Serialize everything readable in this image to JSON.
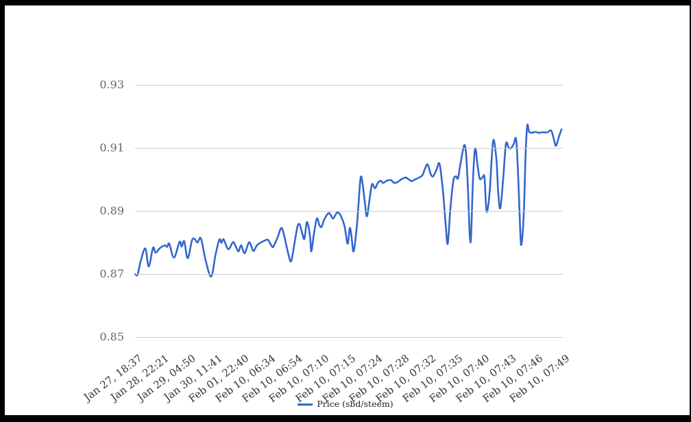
{
  "frame": {
    "color": "#000000"
  },
  "chart_data": {
    "type": "line",
    "title": "",
    "xlabel": "",
    "ylabel": "",
    "ylim": [
      0.85,
      0.93
    ],
    "yticks": [
      0.93,
      0.91,
      0.89,
      0.87,
      0.85
    ],
    "grid": true,
    "legend_position": "bottom",
    "categories": [
      "Jan 27, 18:37",
      "Jan 28, 22:21",
      "Jan 29, 04:50",
      "Jan 30, 11:41",
      "Feb 01, 22:40",
      "Feb 10, 06:34",
      "Feb 10, 06:54",
      "Feb 10, 07:10",
      "Feb 10, 07:15",
      "Feb 10, 07:24",
      "Feb 10, 07:28",
      "Feb 10, 07:32",
      "Feb 10, 07:35",
      "Feb 10, 07:40",
      "Feb 10, 07:43",
      "Feb 10, 07:46",
      "Feb 10, 07:49"
    ],
    "series": [
      {
        "name": "Price (sbd/steem)",
        "color": "#3366cc",
        "points": [
          [
            0.0,
            0.87
          ],
          [
            0.006,
            0.8698
          ],
          [
            0.013,
            0.874
          ],
          [
            0.024,
            0.8781
          ],
          [
            0.032,
            0.8724
          ],
          [
            0.042,
            0.8783
          ],
          [
            0.048,
            0.8768
          ],
          [
            0.058,
            0.8782
          ],
          [
            0.069,
            0.8791
          ],
          [
            0.075,
            0.8786
          ],
          [
            0.08,
            0.8796
          ],
          [
            0.091,
            0.8752
          ],
          [
            0.104,
            0.8802
          ],
          [
            0.109,
            0.8787
          ],
          [
            0.115,
            0.8804
          ],
          [
            0.123,
            0.875
          ],
          [
            0.133,
            0.8806
          ],
          [
            0.139,
            0.8812
          ],
          [
            0.146,
            0.88
          ],
          [
            0.154,
            0.8813
          ],
          [
            0.165,
            0.8743
          ],
          [
            0.178,
            0.8692
          ],
          [
            0.188,
            0.876
          ],
          [
            0.197,
            0.8809
          ],
          [
            0.202,
            0.8799
          ],
          [
            0.207,
            0.881
          ],
          [
            0.218,
            0.8779
          ],
          [
            0.229,
            0.8801
          ],
          [
            0.236,
            0.8786
          ],
          [
            0.242,
            0.8772
          ],
          [
            0.248,
            0.8791
          ],
          [
            0.256,
            0.8766
          ],
          [
            0.266,
            0.88
          ],
          [
            0.272,
            0.8788
          ],
          [
            0.277,
            0.8773
          ],
          [
            0.285,
            0.8791
          ],
          [
            0.295,
            0.8801
          ],
          [
            0.303,
            0.8806
          ],
          [
            0.311,
            0.8808
          ],
          [
            0.321,
            0.8786
          ],
          [
            0.325,
            0.8791
          ],
          [
            0.333,
            0.8815
          ],
          [
            0.343,
            0.8846
          ],
          [
            0.353,
            0.8795
          ],
          [
            0.359,
            0.876
          ],
          [
            0.365,
            0.8741
          ],
          [
            0.373,
            0.88
          ],
          [
            0.38,
            0.8852
          ],
          [
            0.385,
            0.8857
          ],
          [
            0.391,
            0.8828
          ],
          [
            0.396,
            0.8812
          ],
          [
            0.402,
            0.8865
          ],
          [
            0.409,
            0.882
          ],
          [
            0.412,
            0.8772
          ],
          [
            0.418,
            0.8825
          ],
          [
            0.425,
            0.8876
          ],
          [
            0.431,
            0.8855
          ],
          [
            0.436,
            0.885
          ],
          [
            0.442,
            0.8872
          ],
          [
            0.452,
            0.8893
          ],
          [
            0.458,
            0.8886
          ],
          [
            0.463,
            0.8876
          ],
          [
            0.47,
            0.8891
          ],
          [
            0.474,
            0.8896
          ],
          [
            0.481,
            0.8885
          ],
          [
            0.49,
            0.885
          ],
          [
            0.497,
            0.8796
          ],
          [
            0.502,
            0.8846
          ],
          [
            0.506,
            0.882
          ],
          [
            0.511,
            0.8772
          ],
          [
            0.519,
            0.886
          ],
          [
            0.527,
            0.9002
          ],
          [
            0.532,
            0.8985
          ],
          [
            0.537,
            0.893
          ],
          [
            0.542,
            0.8883
          ],
          [
            0.548,
            0.8935
          ],
          [
            0.554,
            0.8985
          ],
          [
            0.561,
            0.8972
          ],
          [
            0.567,
            0.8988
          ],
          [
            0.574,
            0.8996
          ],
          [
            0.58,
            0.8989
          ],
          [
            0.588,
            0.8996
          ],
          [
            0.598,
            0.8998
          ],
          [
            0.606,
            0.8989
          ],
          [
            0.614,
            0.8992
          ],
          [
            0.623,
            0.9001
          ],
          [
            0.633,
            0.9006
          ],
          [
            0.641,
            0.8999
          ],
          [
            0.647,
            0.8995
          ],
          [
            0.656,
            0.9001
          ],
          [
            0.664,
            0.9006
          ],
          [
            0.672,
            0.9014
          ],
          [
            0.678,
            0.9035
          ],
          [
            0.684,
            0.9048
          ],
          [
            0.691,
            0.9018
          ],
          [
            0.697,
            0.901
          ],
          [
            0.705,
            0.9032
          ],
          [
            0.712,
            0.9049
          ],
          [
            0.72,
            0.8961
          ],
          [
            0.726,
            0.886
          ],
          [
            0.731,
            0.8796
          ],
          [
            0.737,
            0.8905
          ],
          [
            0.744,
            0.8995
          ],
          [
            0.75,
            0.901
          ],
          [
            0.755,
            0.9004
          ],
          [
            0.761,
            0.9052
          ],
          [
            0.771,
            0.9109
          ],
          [
            0.777,
            0.901
          ],
          [
            0.784,
            0.88
          ],
          [
            0.79,
            0.9
          ],
          [
            0.795,
            0.9098
          ],
          [
            0.801,
            0.9042
          ],
          [
            0.806,
            0.9002
          ],
          [
            0.813,
            0.9008
          ],
          [
            0.817,
            0.9005
          ],
          [
            0.822,
            0.8898
          ],
          [
            0.829,
            0.896
          ],
          [
            0.833,
            0.905
          ],
          [
            0.838,
            0.9126
          ],
          [
            0.845,
            0.906
          ],
          [
            0.849,
            0.896
          ],
          [
            0.854,
            0.8909
          ],
          [
            0.861,
            0.901
          ],
          [
            0.867,
            0.9113
          ],
          [
            0.873,
            0.9102
          ],
          [
            0.878,
            0.9098
          ],
          [
            0.885,
            0.9112
          ],
          [
            0.891,
            0.9126
          ],
          [
            0.896,
            0.9
          ],
          [
            0.901,
            0.882
          ],
          [
            0.904,
            0.88
          ],
          [
            0.909,
            0.89
          ],
          [
            0.913,
            0.908
          ],
          [
            0.917,
            0.9172
          ],
          [
            0.921,
            0.9152
          ],
          [
            0.928,
            0.9148
          ],
          [
            0.936,
            0.9151
          ],
          [
            0.944,
            0.9148
          ],
          [
            0.952,
            0.915
          ],
          [
            0.96,
            0.9149
          ],
          [
            0.966,
            0.9151
          ],
          [
            0.973,
            0.9155
          ],
          [
            0.979,
            0.9128
          ],
          [
            0.984,
            0.9107
          ],
          [
            0.99,
            0.9132
          ],
          [
            0.997,
            0.9159
          ]
        ]
      }
    ]
  },
  "legend": {
    "label": "Price (sbd/steem)"
  },
  "colors": {
    "line": "#3366cc",
    "grid": "#cccccc",
    "ytick_text": "#666666",
    "xtick_text": "#333333",
    "legend_text": "#222222"
  }
}
